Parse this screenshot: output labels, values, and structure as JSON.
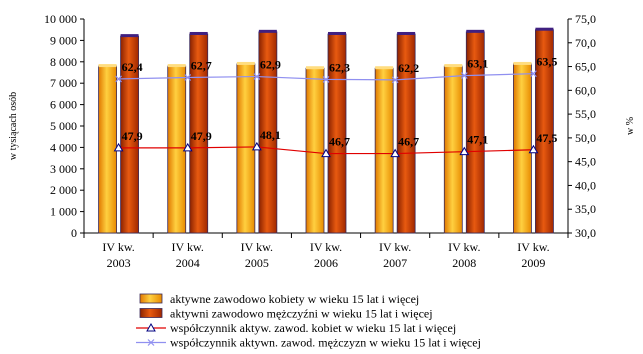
{
  "chart_data": {
    "type": "bar",
    "categories": [
      [
        "IV kw.",
        "2003"
      ],
      [
        "IV kw.",
        "2004"
      ],
      [
        "IV kw.",
        "2005"
      ],
      [
        "IV kw.",
        "2006"
      ],
      [
        "IV kw.",
        "2007"
      ],
      [
        "IV kw.",
        "2008"
      ],
      [
        "IV kw.",
        "2009"
      ]
    ],
    "ylabel_left": "w tysiącach osób",
    "ylabel_right": "w %",
    "ylim_left": [
      0,
      10000
    ],
    "ylim_right": [
      30,
      75
    ],
    "yticks_left": [
      "0",
      "1 000",
      "2 000",
      "3 000",
      "4 000",
      "5 000",
      "6 000",
      "7 000",
      "8 000",
      "9 000",
      "10 000"
    ],
    "yticks_right": [
      "30,0",
      "35,0",
      "40,0",
      "45,0",
      "50,0",
      "55,0",
      "60,0",
      "65,0",
      "70,0",
      "75,0"
    ],
    "grid": false,
    "legend_position": "bottom",
    "series": [
      {
        "name": "aktywne zawodowo kobiety w wieku 15 lat i więcej",
        "kind": "bar",
        "axis": "left",
        "color": "#f5a300",
        "values": [
          7800,
          7800,
          7900,
          7700,
          7700,
          7800,
          7900
        ]
      },
      {
        "name": "aktywni zawodowo mężczyźni w wieku 15 lat i więcej",
        "kind": "bar",
        "axis": "left",
        "color": "#c83c00",
        "values": [
          9200,
          9300,
          9400,
          9300,
          9300,
          9400,
          9500
        ]
      },
      {
        "name": "współczynnik aktyw. zawod. kobiet w wieku 15 lat i więcej",
        "kind": "line",
        "axis": "right",
        "color": "#e00000",
        "marker": "triangle",
        "values": [
          47.9,
          47.9,
          48.1,
          46.7,
          46.7,
          47.1,
          47.5
        ],
        "labels": [
          "47,9",
          "47,9",
          "48,1",
          "46,7",
          "46,7",
          "47,1",
          "47,5"
        ]
      },
      {
        "name": "współczynnik aktywn. zawod. mężczyzn w wieku 15 lat i więcej",
        "kind": "line",
        "axis": "right",
        "color": "#9090f0",
        "marker": "x",
        "values": [
          62.4,
          62.7,
          62.9,
          62.3,
          62.2,
          63.1,
          63.5
        ],
        "labels": [
          "62,4",
          "62,7",
          "62,9",
          "62,3",
          "62,2",
          "63,1",
          "63,5"
        ]
      }
    ]
  }
}
